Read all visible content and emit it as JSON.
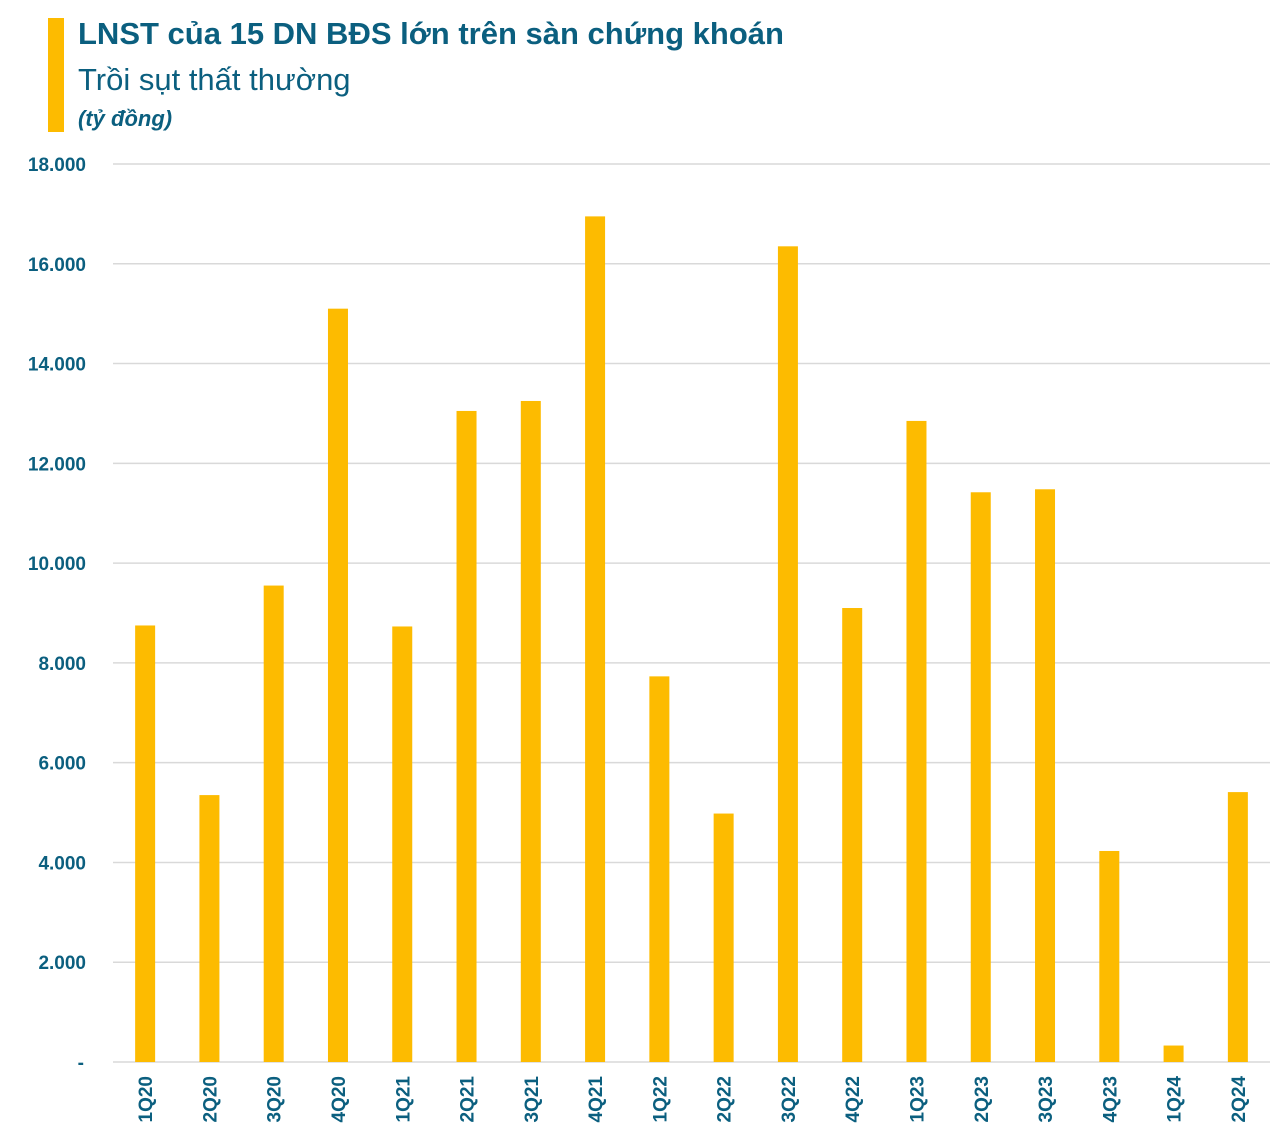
{
  "header": {
    "title": "LNST của 15 DN BĐS lớn trên sàn chứng khoán",
    "subtitle": "Trồi sụt thất thường",
    "unit": "(tỷ đồng)"
  },
  "colors": {
    "bar": "#FDBB00",
    "text": "#0B5F7F",
    "grid": "#D9D9D9"
  },
  "chart_data": {
    "type": "bar",
    "title": "LNST của 15 DN BĐS lớn trên sàn chứng khoán",
    "subtitle": "Trồi sụt thất thường",
    "ylabel": "(tỷ đồng)",
    "categories": [
      "1Q20",
      "2Q20",
      "3Q20",
      "4Q20",
      "1Q21",
      "2Q21",
      "3Q21",
      "4Q21",
      "1Q22",
      "2Q22",
      "3Q22",
      "4Q22",
      "1Q23",
      "2Q23",
      "3Q23",
      "4Q23",
      "1Q24",
      "2Q24"
    ],
    "values": [
      8750,
      5350,
      9550,
      15100,
      8730,
      13050,
      13250,
      16950,
      7730,
      4980,
      16350,
      9100,
      12850,
      11420,
      11480,
      4230,
      330,
      5410
    ],
    "ylim": [
      0,
      18000
    ],
    "yticks": [
      0,
      2000,
      4000,
      6000,
      8000,
      10000,
      12000,
      14000,
      16000,
      18000
    ],
    "ytick_labels": [
      "-",
      "2.000",
      "4.000",
      "6.000",
      "8.000",
      "10.000",
      "12.000",
      "14.000",
      "16.000",
      "18.000"
    ],
    "grid": true,
    "legend": "none"
  }
}
